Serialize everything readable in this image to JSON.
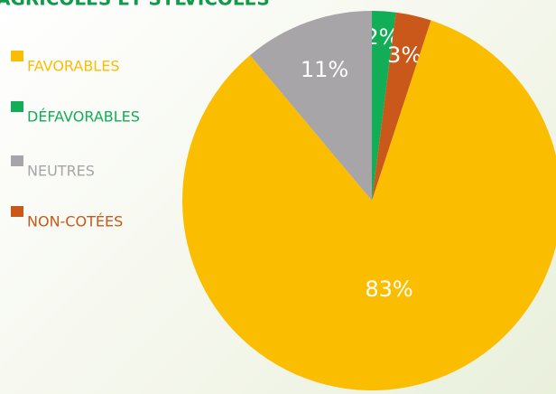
{
  "chart_data": {
    "type": "pie",
    "title": "AGRICOLES ET SYLVICOLES",
    "categories": [
      "DÉFAVORABLES",
      "NON-COTÉES",
      "FAVORABLES",
      "NEUTRES"
    ],
    "values": [
      2,
      3,
      83,
      11
    ],
    "value_labels": [
      "2%",
      "3%",
      "83%",
      "11%"
    ],
    "colors": [
      "#12ad57",
      "#c9581a",
      "#fbbd00",
      "#a7a5a7"
    ]
  }
}
